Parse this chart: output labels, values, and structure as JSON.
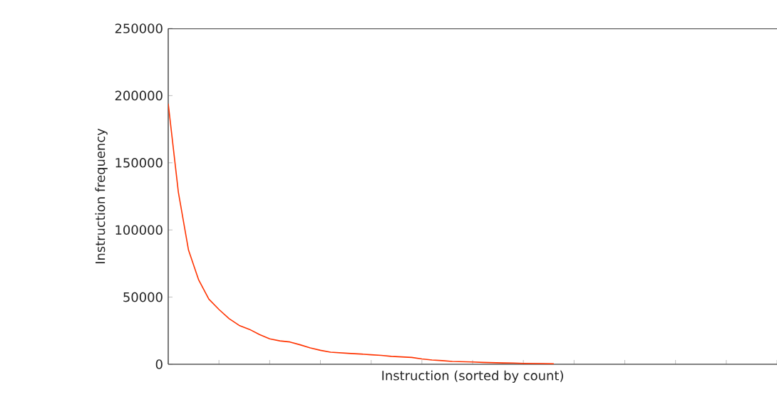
{
  "chart_data": {
    "type": "line",
    "xlabel": "Instruction (sorted by count)",
    "ylabel": "Instruction frequency",
    "categories": [
      null,
      null,
      null,
      null,
      null,
      null,
      null,
      null,
      null,
      null,
      null,
      null,
      null,
      null,
      null,
      null,
      null,
      null,
      null,
      null,
      null,
      null,
      null,
      null,
      null,
      null,
      null,
      null,
      null,
      null,
      null,
      null,
      null,
      null,
      null,
      null,
      null,
      null,
      null,
      null,
      null,
      null,
      null,
      null,
      null,
      null,
      null,
      null,
      null,
      null,
      null,
      null,
      null,
      null,
      null,
      null,
      null,
      null,
      null,
      null,
      null
    ],
    "series": [
      {
        "color": "#ff3300",
        "values": [
          194000,
          128000,
          85000,
          62800,
          48500,
          40800,
          34000,
          28900,
          26000,
          22100,
          18900,
          17400,
          16600,
          14500,
          12200,
          10400,
          9000,
          8500,
          8000,
          7600,
          7100,
          6600,
          5900,
          5500,
          5100,
          4000,
          3200,
          2700,
          2100,
          1900,
          1700,
          1400,
          1200,
          1000,
          900,
          700,
          600,
          500,
          400,
          null,
          null,
          null,
          null,
          null,
          null,
          null,
          null,
          null,
          null,
          null,
          null,
          null,
          null,
          null,
          null,
          null,
          null,
          null,
          null,
          null,
          null
        ]
      }
    ],
    "ylim": [
      0,
      250000
    ],
    "yticks": [
      0,
      50000,
      100000,
      150000,
      200000,
      250000
    ]
  }
}
